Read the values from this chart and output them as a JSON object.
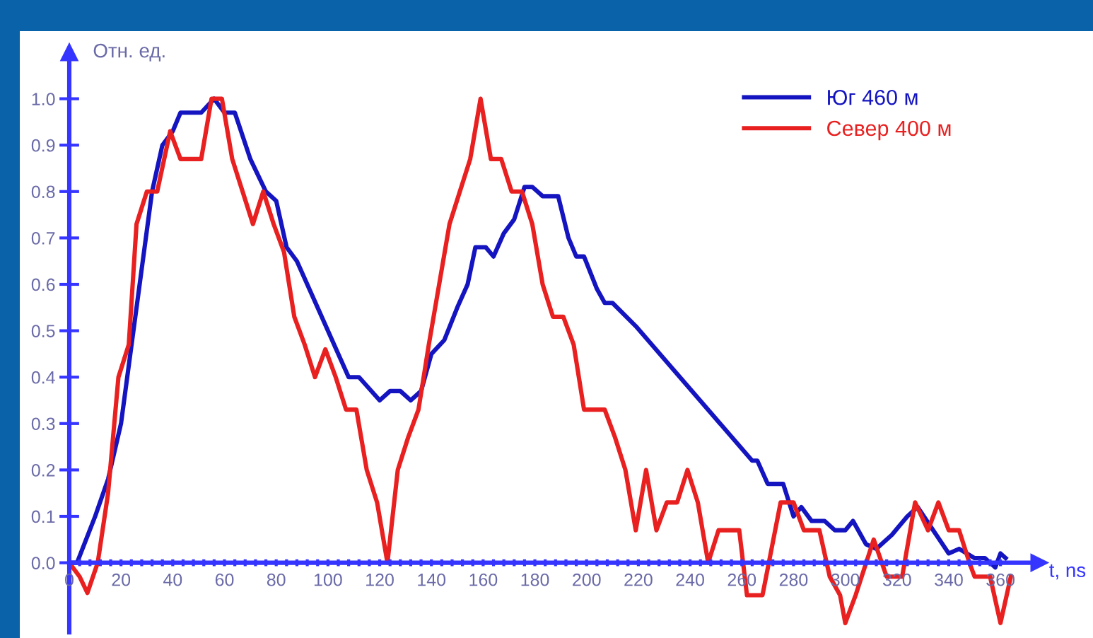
{
  "chart_data": {
    "type": "line",
    "xlabel": "t, ns",
    "ylabel": "Отн. ед.",
    "xlim": [
      0,
      375
    ],
    "ylim": [
      -0.15,
      1.1
    ],
    "xticks": [
      0,
      {
        "value": 4,
        "label": null
      },
      {
        "value": 8,
        "label": null
      },
      {
        "value": 12,
        "label": null
      },
      {
        "value": 16,
        "label": null
      },
      20,
      {
        "value": 24,
        "label": null
      },
      {
        "value": 28,
        "label": null
      },
      {
        "value": 32,
        "label": null
      },
      {
        "value": 36,
        "label": null
      },
      40,
      {
        "value": 44,
        "label": null
      },
      {
        "value": 48,
        "label": null
      },
      {
        "value": 52,
        "label": null
      },
      {
        "value": 56,
        "label": null
      },
      60,
      {
        "value": 64,
        "label": null
      },
      {
        "value": 68,
        "label": null
      },
      {
        "value": 72,
        "label": null
      },
      {
        "value": 76,
        "label": null
      },
      80,
      {
        "value": 84,
        "label": null
      },
      {
        "value": 88,
        "label": null
      },
      {
        "value": 92,
        "label": null
      },
      {
        "value": 96,
        "label": null
      },
      100,
      {
        "value": 104,
        "label": null
      },
      {
        "value": 108,
        "label": null
      },
      {
        "value": 112,
        "label": null
      },
      {
        "value": 116,
        "label": null
      },
      120,
      {
        "value": 124,
        "label": null
      },
      {
        "value": 128,
        "label": null
      },
      {
        "value": 132,
        "label": null
      },
      {
        "value": 136,
        "label": null
      },
      140,
      {
        "value": 144,
        "label": null
      },
      {
        "value": 148,
        "label": null
      },
      {
        "value": 152,
        "label": null
      },
      {
        "value": 156,
        "label": null
      },
      160,
      {
        "value": 164,
        "label": null
      },
      {
        "value": 168,
        "label": null
      },
      {
        "value": 172,
        "label": null
      },
      {
        "value": 176,
        "label": null
      },
      180,
      {
        "value": 184,
        "label": null
      },
      {
        "value": 188,
        "label": null
      },
      {
        "value": 192,
        "label": null
      },
      {
        "value": 196,
        "label": null
      },
      200,
      {
        "value": 204,
        "label": null
      },
      {
        "value": 208,
        "label": null
      },
      {
        "value": 212,
        "label": null
      },
      {
        "value": 216,
        "label": null
      },
      220,
      {
        "value": 224,
        "label": null
      },
      {
        "value": 228,
        "label": null
      },
      {
        "value": 232,
        "label": null
      },
      {
        "value": 236,
        "label": null
      },
      240,
      {
        "value": 244,
        "label": null
      },
      {
        "value": 248,
        "label": null
      },
      {
        "value": 252,
        "label": null
      },
      {
        "value": 256,
        "label": null
      },
      260,
      {
        "value": 264,
        "label": null
      },
      {
        "value": 268,
        "label": null
      },
      {
        "value": 272,
        "label": null
      },
      {
        "value": 276,
        "label": null
      },
      280,
      {
        "value": 284,
        "label": null
      },
      {
        "value": 288,
        "label": null
      },
      {
        "value": 292,
        "label": null
      },
      {
        "value": 296,
        "label": null
      },
      300,
      {
        "value": 304,
        "label": null
      },
      {
        "value": 308,
        "label": null
      },
      {
        "value": 312,
        "label": null
      },
      {
        "value": 316,
        "label": null
      },
      320,
      {
        "value": 324,
        "label": null
      },
      {
        "value": 328,
        "label": null
      },
      {
        "value": 332,
        "label": null
      },
      {
        "value": 336,
        "label": null
      },
      340,
      {
        "value": 344,
        "label": null
      },
      {
        "value": 348,
        "label": null
      },
      {
        "value": 352,
        "label": null
      },
      {
        "value": 356,
        "label": null
      },
      360
    ],
    "yticks": [
      {
        "value": 0,
        "label": "0.0"
      },
      {
        "value": 0.1,
        "label": "0.1"
      },
      {
        "value": 0.2,
        "label": "0.2"
      },
      {
        "value": 0.3,
        "label": "0.3"
      },
      {
        "value": 0.4,
        "label": "0.4"
      },
      {
        "value": 0.5,
        "label": "0.5"
      },
      {
        "value": 0.6,
        "label": "0.6"
      },
      {
        "value": 0.7,
        "label": "0.7"
      },
      {
        "value": 0.8,
        "label": "0.8"
      },
      {
        "value": 0.9,
        "label": "0.9"
      },
      {
        "value": 1.0,
        "label": "1.0"
      }
    ],
    "legend": "top right",
    "grid": false,
    "series": [
      {
        "name": "Юг 460 м",
        "color": "#1414c0",
        "x": [
          0,
          3,
          10,
          15,
          20,
          26,
          32,
          36,
          40,
          43,
          51,
          56,
          60,
          64,
          70,
          76,
          80,
          84,
          88,
          96,
          104,
          108,
          112,
          120,
          124,
          128,
          132,
          136,
          140,
          145,
          150,
          154,
          157,
          161,
          164,
          168,
          172,
          176,
          179,
          183,
          189,
          193,
          196,
          199,
          204,
          207,
          210,
          219,
          264,
          266,
          270,
          276,
          280,
          283,
          287,
          292,
          296,
          300,
          303,
          308,
          312,
          318,
          324,
          328,
          334,
          340,
          344,
          350,
          354,
          358,
          360,
          362
        ],
        "values": [
          0,
          0,
          0.1,
          0.18,
          0.3,
          0.55,
          0.8,
          0.9,
          0.93,
          0.97,
          0.97,
          1.0,
          0.97,
          0.97,
          0.87,
          0.8,
          0.78,
          0.68,
          0.65,
          0.55,
          0.45,
          0.4,
          0.4,
          0.35,
          0.37,
          0.37,
          0.35,
          0.37,
          0.45,
          0.48,
          0.55,
          0.6,
          0.68,
          0.68,
          0.66,
          0.71,
          0.74,
          0.81,
          0.81,
          0.79,
          0.79,
          0.7,
          0.66,
          0.66,
          0.59,
          0.56,
          0.56,
          0.51,
          0.22,
          0.22,
          0.17,
          0.17,
          0.1,
          0.12,
          0.09,
          0.09,
          0.07,
          0.07,
          0.09,
          0.04,
          0.03,
          0.06,
          0.1,
          0.12,
          0.07,
          0.02,
          0.03,
          0.01,
          0.01,
          -0.01,
          0.02,
          0.01
        ]
      },
      {
        "name": "Север 400 м",
        "color": "#e82020",
        "x": [
          0,
          4,
          7,
          11,
          15,
          19,
          23,
          26,
          30,
          34,
          39,
          43,
          51,
          55,
          59,
          63,
          67,
          71,
          75,
          79,
          83,
          87,
          91,
          95,
          99,
          103,
          107,
          111,
          115,
          119,
          123,
          127,
          131,
          135,
          139,
          143,
          147,
          151,
          155,
          159,
          163,
          167,
          171,
          175,
          179,
          183,
          187,
          191,
          195,
          199,
          203,
          207,
          211,
          215,
          219,
          223,
          227,
          231,
          235,
          239,
          243,
          247,
          251,
          255,
          259,
          262,
          268,
          275,
          280,
          284,
          290,
          294,
          298,
          300,
          304,
          311,
          316,
          322,
          327,
          332,
          336,
          340,
          344,
          348,
          350,
          356,
          360,
          364
        ],
        "values": [
          0,
          -0.03,
          -0.065,
          0,
          0.15,
          0.4,
          0.47,
          0.73,
          0.8,
          0.8,
          0.93,
          0.87,
          0.87,
          1.0,
          1.0,
          0.87,
          0.8,
          0.73,
          0.8,
          0.73,
          0.67,
          0.53,
          0.47,
          0.4,
          0.46,
          0.4,
          0.33,
          0.33,
          0.2,
          0.13,
          0.0,
          0.2,
          0.27,
          0.33,
          0.47,
          0.6,
          0.73,
          0.8,
          0.87,
          1.0,
          0.87,
          0.87,
          0.8,
          0.8,
          0.73,
          0.6,
          0.53,
          0.53,
          0.47,
          0.33,
          0.33,
          0.33,
          0.27,
          0.2,
          0.07,
          0.2,
          0.07,
          0.13,
          0.13,
          0.2,
          0.13,
          0.0,
          0.07,
          0.07,
          0.07,
          -0.07,
          -0.07,
          0.13,
          0.13,
          0.07,
          0.07,
          -0.03,
          -0.07,
          -0.13,
          -0.07,
          0.05,
          -0.03,
          -0.03,
          0.13,
          0.07,
          0.13,
          0.07,
          0.07,
          0.0,
          -0.03,
          -0.03,
          -0.13,
          -0.03
        ]
      }
    ]
  }
}
